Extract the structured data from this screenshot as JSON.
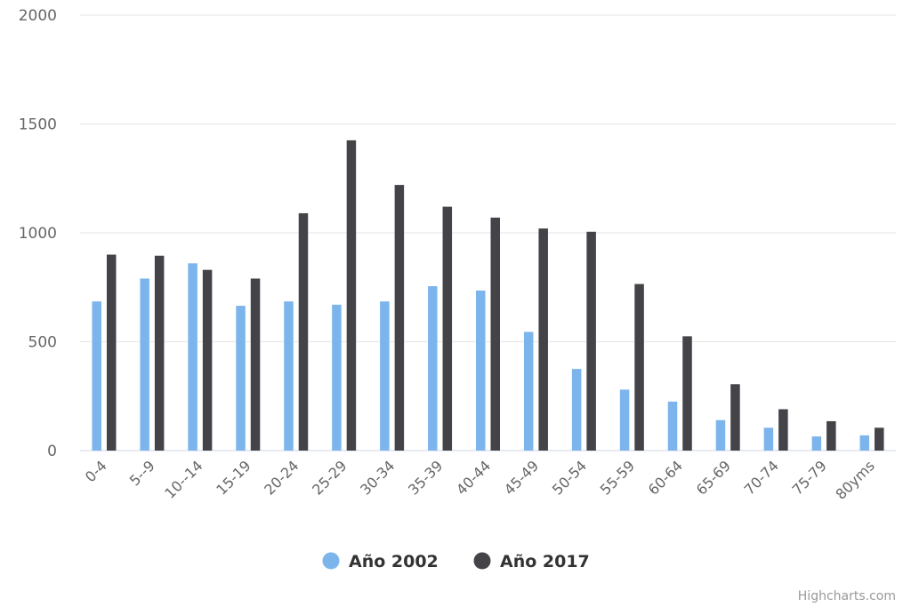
{
  "chart_data": {
    "type": "bar",
    "categories": [
      "0-4",
      "5--9",
      "10--14",
      "15-19",
      "20-24",
      "25-29",
      "30-34",
      "35-39",
      "40-44",
      "45-49",
      "50-54",
      "55-59",
      "60-64",
      "65-69",
      "70-74",
      "75-79",
      "80yms"
    ],
    "series": [
      {
        "name": "Año 2002",
        "color": "#7cb5ec",
        "values": [
          685,
          790,
          860,
          665,
          685,
          670,
          685,
          755,
          735,
          545,
          375,
          280,
          225,
          140,
          105,
          65,
          70
        ]
      },
      {
        "name": "Año 2017",
        "color": "#434348",
        "values": [
          900,
          895,
          830,
          790,
          1090,
          1425,
          1220,
          1120,
          1070,
          1020,
          1005,
          765,
          525,
          305,
          190,
          135,
          105
        ]
      }
    ],
    "title": "",
    "xlabel": "",
    "ylabel": "",
    "ylim": [
      0,
      2000
    ],
    "yticks": [
      "0",
      "500",
      "1000",
      "1500",
      "2000"
    ],
    "grid": true,
    "legend_position": "bottom-center"
  },
  "credits": "Highcharts.com"
}
